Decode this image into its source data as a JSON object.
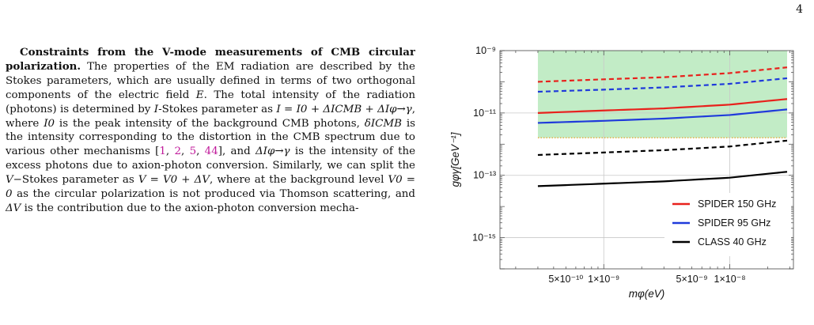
{
  "page_number": "4",
  "section_heading": "Constraints from the V-mode measurements of CMB circular polarization.",
  "paragraph": {
    "p1": " The properties of the EM radiation are described by the Stokes parameters, which are usually defined in terms of two orthogonal components of the electric field ",
    "E": "E",
    "p2": ". The total intensity of the radiation (photons) is determined by ",
    "I_symbol": "I",
    "p3": "-Stokes parameter as ",
    "eq1": "I = I0 + ΔICMB + ΔIφ→γ",
    "p4": ", where ",
    "I0": "I0",
    "p5": " is the peak intensity of the background CMB photons, ",
    "dIcmb": "δICMB",
    "p6": " is the intensity corresponding to the distortion in the CMB spectrum due to various other mechanisms [",
    "cites": [
      "1",
      "2",
      "5",
      "44"
    ],
    "p7": "], and ",
    "dIphi": "ΔIφ→γ",
    "p8": " is the intensity of the excess photons due to axion-photon conversion. Similarly, we can split the ",
    "V_symbol": "V",
    "p9": "−Stokes parameter as ",
    "eq2": "V = V0 + ΔV",
    "p10": ", where at the background level ",
    "eq3": "V0 = 0",
    "p11": " as the circular polarization is not produced via Thomson scattering, and ",
    "dV": "ΔV",
    "p12": " is the contribution due to the axion-photon conversion mecha-"
  },
  "chart_data": {
    "type": "line",
    "xlabel": "mφ(eV)",
    "ylabel": "gφγ[GeV⁻¹]",
    "x_scale": "log",
    "y_scale": "log",
    "xlim": [
      1.5e-10,
      3.2e-08
    ],
    "ylim": [
      1e-16,
      1e-09
    ],
    "x_ticks": [
      {
        "value": 5e-10,
        "label": "5×10⁻¹⁰"
      },
      {
        "value": 1e-09,
        "label": "1×10⁻⁹"
      },
      {
        "value": 5e-09,
        "label": "5×10⁻⁹"
      },
      {
        "value": 1e-08,
        "label": "1×10⁻⁸"
      }
    ],
    "y_ticks": [
      {
        "value": 1e-09,
        "label": "10⁻⁹"
      },
      {
        "value": 1e-11,
        "label": "10⁻¹¹"
      },
      {
        "value": 1e-13,
        "label": "10⁻¹³"
      },
      {
        "value": 1e-15,
        "label": "10⁻¹⁵"
      }
    ],
    "grid": true,
    "shaded_region": {
      "x": [
        3e-10,
        2.85e-08
      ],
      "y": [
        1.6e-12,
        1e-09
      ],
      "color": "#c2ecc6",
      "edge_color": "#e6b24a"
    },
    "series": [
      {
        "name": "SPIDER 150 GHz",
        "color": "#e8211c",
        "style": "solid",
        "x": [
          3e-10,
          1e-09,
          3e-09,
          1e-08,
          2.85e-08
        ],
        "y": [
          1e-11,
          1.2e-11,
          1.4e-11,
          1.85e-11,
          2.8e-11
        ]
      },
      {
        "name": "",
        "color": "#e8211c",
        "style": "dashed",
        "x": [
          3e-10,
          1e-09,
          3e-09,
          1e-08,
          2.85e-08
        ],
        "y": [
          1e-10,
          1.2e-10,
          1.4e-10,
          1.9e-10,
          2.9e-10
        ]
      },
      {
        "name": "SPIDER 95 GHz",
        "color": "#1f3adb",
        "style": "solid",
        "x": [
          3e-10,
          1e-09,
          3e-09,
          1e-08,
          2.85e-08
        ],
        "y": [
          4.8e-12,
          5.6e-12,
          6.6e-12,
          8.6e-12,
          1.3e-11
        ]
      },
      {
        "name": "",
        "color": "#1f3adb",
        "style": "dashed",
        "x": [
          3e-10,
          1e-09,
          3e-09,
          1e-08,
          2.85e-08
        ],
        "y": [
          4.8e-11,
          5.6e-11,
          6.6e-11,
          8.6e-11,
          1.3e-10
        ]
      },
      {
        "name": "CLASS 40 GHz",
        "color": "#000000",
        "style": "solid",
        "x": [
          3e-10,
          1e-09,
          3e-09,
          1e-08,
          2.85e-08
        ],
        "y": [
          4.5e-14,
          5.4e-14,
          6.4e-14,
          8.4e-14,
          1.3e-13
        ]
      },
      {
        "name": "",
        "color": "#000000",
        "style": "dashed",
        "x": [
          3e-10,
          1e-09,
          3e-09,
          1e-08,
          2.85e-08
        ],
        "y": [
          4.5e-13,
          5.4e-13,
          6.4e-13,
          8.4e-13,
          1.3e-12
        ]
      }
    ],
    "legend_position": "bottom-right"
  }
}
